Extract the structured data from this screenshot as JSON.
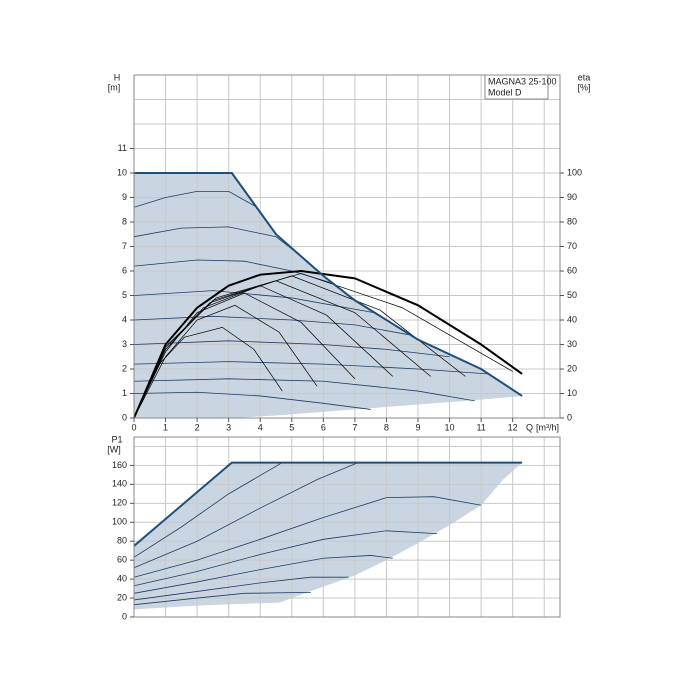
{
  "chart_data": [
    {
      "type": "line",
      "title": "MAGNA3 25-100",
      "subtitle": "Model D",
      "ylabel": "H",
      "yunit": "[m]",
      "y2label": "eta",
      "y2unit": "[%]",
      "xlabel": "Q",
      "xunit": "[m³/h]",
      "xlim": [
        0,
        13.5
      ],
      "ylim": [
        0,
        14
      ],
      "y2lim": [
        0,
        140
      ],
      "xticks": [
        0,
        1,
        2,
        3,
        4,
        5,
        6,
        7,
        8,
        9,
        10,
        11,
        12
      ],
      "yticks": [
        0,
        1,
        2,
        3,
        4,
        5,
        6,
        7,
        8,
        9,
        10,
        11
      ],
      "y2ticks": [
        0,
        10,
        20,
        30,
        40,
        50,
        60,
        70,
        80,
        90,
        100
      ],
      "xgrid": [
        0,
        1,
        2,
        3,
        4,
        5,
        6,
        7,
        8,
        9,
        10,
        11,
        12,
        13
      ],
      "ygrid": [
        0,
        1,
        2,
        3,
        4,
        5,
        6,
        7,
        8,
        9,
        10,
        11,
        12,
        13
      ],
      "region": {
        "x": [
          0,
          3.1,
          4.5,
          6,
          7,
          9,
          11,
          12.3
        ],
        "values": [
          10,
          10,
          7.5,
          5.8,
          4.8,
          3.2,
          2,
          0.9
        ],
        "lower": [
          0,
          0,
          0.1,
          0.25,
          0.35,
          0.55,
          0.75,
          0.9
        ],
        "color": "#c9d6e2",
        "edge": "#1f4e79"
      },
      "series": [
        {
          "x": [
            0,
            1,
            2,
            3,
            3.9
          ],
          "values": [
            8.6,
            9.0,
            9.25,
            9.25,
            8.6
          ],
          "color": "#1f3b66",
          "width": 0.8
        },
        {
          "x": [
            0,
            1.5,
            3,
            4.5,
            5.2
          ],
          "values": [
            7.4,
            7.75,
            7.8,
            7.4,
            6.7
          ],
          "color": "#1f3b66",
          "width": 0.8
        },
        {
          "x": [
            0,
            2,
            3.5,
            5,
            6.3
          ],
          "values": [
            6.2,
            6.45,
            6.4,
            6.0,
            5.5
          ],
          "color": "#1f3b66",
          "width": 0.8
        },
        {
          "x": [
            0,
            2.5,
            5,
            7.6
          ],
          "values": [
            5.0,
            5.2,
            4.9,
            4.3
          ],
          "color": "#1f3b66",
          "width": 0.8
        },
        {
          "x": [
            0,
            2.5,
            5,
            7,
            8.7
          ],
          "values": [
            4.0,
            4.15,
            4.0,
            3.8,
            3.4
          ],
          "color": "#1f3b66",
          "width": 0.8
        },
        {
          "x": [
            0,
            3,
            6,
            8,
            10
          ],
          "values": [
            3.0,
            3.15,
            3.0,
            2.8,
            2.5
          ],
          "color": "#1f3b66",
          "width": 0.8
        },
        {
          "x": [
            0,
            3,
            6,
            9,
            11.2
          ],
          "values": [
            2.2,
            2.3,
            2.2,
            2.0,
            1.8
          ],
          "color": "#1f3b66",
          "width": 0.8
        },
        {
          "x": [
            0,
            3,
            6,
            9,
            10.8
          ],
          "values": [
            1.5,
            1.6,
            1.5,
            1.1,
            0.7
          ],
          "color": "#1f3b66",
          "width": 0.8
        },
        {
          "x": [
            0,
            2,
            4,
            6,
            7.5
          ],
          "values": [
            1.0,
            1.05,
            0.9,
            0.6,
            0.35
          ],
          "color": "#1f3b66",
          "width": 0.8
        },
        {
          "x": [
            0,
            0.8,
            1.6,
            2.8,
            3.8,
            4.7
          ],
          "values": [
            0,
            22,
            33,
            37,
            28,
            11
          ],
          "color": "#000000",
          "width": 0.7,
          "axis": "y2"
        },
        {
          "x": [
            0,
            1,
            2,
            3.2,
            4.6,
            5.8
          ],
          "values": [
            0,
            25,
            40,
            46,
            35,
            13
          ],
          "color": "#000000",
          "width": 0.7,
          "axis": "y2"
        },
        {
          "x": [
            0,
            1,
            2,
            3.5,
            5.3,
            7
          ],
          "values": [
            0,
            27,
            43,
            51,
            39,
            16
          ],
          "color": "#000000",
          "width": 0.7,
          "axis": "y2"
        },
        {
          "x": [
            0,
            1,
            2.2,
            4,
            6.1,
            8.2
          ],
          "values": [
            0,
            28,
            45,
            54,
            42,
            17
          ],
          "color": "#000000",
          "width": 0.7,
          "axis": "y2"
        },
        {
          "x": [
            0,
            1,
            2.4,
            4.5,
            7,
            9.4
          ],
          "values": [
            0,
            28,
            47,
            56,
            43,
            17
          ],
          "color": "#000000",
          "width": 0.7,
          "axis": "y2"
        },
        {
          "x": [
            0,
            1,
            2.5,
            5,
            7.8,
            10.5
          ],
          "values": [
            0,
            29,
            48,
            58,
            44,
            17
          ],
          "color": "#000000",
          "width": 0.7,
          "axis": "y2"
        },
        {
          "x": [
            0,
            1,
            2.6,
            5.3,
            8.5,
            12
          ],
          "values": [
            0,
            29,
            49,
            59,
            45,
            19
          ],
          "color": "#000000",
          "width": 0.7,
          "axis": "y2"
        },
        {
          "x": [
            0,
            1,
            2,
            3,
            4,
            5.3,
            7,
            9,
            11,
            12.3
          ],
          "values": [
            0,
            30,
            45,
            54,
            58.5,
            60,
            57,
            46,
            30,
            18
          ],
          "color": "#000000",
          "width": 2,
          "axis": "y2"
        }
      ]
    },
    {
      "type": "line",
      "ylabel": "P1",
      "yunit": "[W]",
      "xlim": [
        0,
        13.5
      ],
      "ylim": [
        0,
        190
      ],
      "yticks": [
        0,
        20,
        40,
        60,
        80,
        100,
        120,
        140,
        160
      ],
      "xgrid": [
        0,
        1,
        2,
        3,
        4,
        5,
        6,
        7,
        8,
        9,
        10,
        11,
        12,
        13
      ],
      "ygrid": [
        0,
        20,
        40,
        60,
        80,
        100,
        120,
        140,
        160,
        180
      ],
      "region": {
        "x": [
          0,
          1,
          2,
          3.1,
          4.6,
          6,
          7,
          8,
          9,
          10,
          11,
          11.7,
          12.3
        ],
        "values": [
          75,
          103.4,
          131.8,
          163,
          163,
          163,
          163,
          163,
          163,
          163,
          163,
          163,
          163
        ],
        "lower": [
          8,
          10,
          12,
          13.5,
          15,
          32,
          44,
          60,
          78,
          97,
          118,
          145,
          163
        ],
        "color": "#c9d6e2",
        "edge": "#1f4e79"
      },
      "series": [
        {
          "x": [
            0,
            1.5,
            3,
            4.7
          ],
          "values": [
            63,
            95,
            130,
            163
          ],
          "color": "#1f3b66",
          "width": 0.8
        },
        {
          "x": [
            0,
            2,
            4,
            5.8,
            7.1
          ],
          "values": [
            52,
            80,
            115,
            145,
            163
          ],
          "color": "#1f3b66",
          "width": 0.8
        },
        {
          "x": [
            0,
            2,
            4,
            6,
            8,
            9.5,
            11
          ],
          "values": [
            42,
            60,
            82,
            105,
            126,
            127,
            118
          ],
          "color": "#1f3b66",
          "width": 0.8
        },
        {
          "x": [
            0,
            2,
            4,
            6,
            8,
            9.6
          ],
          "values": [
            33,
            48,
            66,
            82,
            91,
            88
          ],
          "color": "#1f3b66",
          "width": 0.8
        },
        {
          "x": [
            0,
            2,
            4,
            6,
            7.5,
            8.2
          ],
          "values": [
            25,
            37,
            50,
            62,
            65,
            62
          ],
          "color": "#1f3b66",
          "width": 0.8
        },
        {
          "x": [
            0,
            2,
            4,
            5.6,
            6.8
          ],
          "values": [
            18,
            27,
            36,
            42,
            42
          ],
          "color": "#1f3b66",
          "width": 0.8
        },
        {
          "x": [
            0,
            2,
            3.5,
            5.6
          ],
          "values": [
            13,
            20,
            25,
            26
          ],
          "color": "#1f3b66",
          "width": 0.8
        }
      ]
    }
  ]
}
